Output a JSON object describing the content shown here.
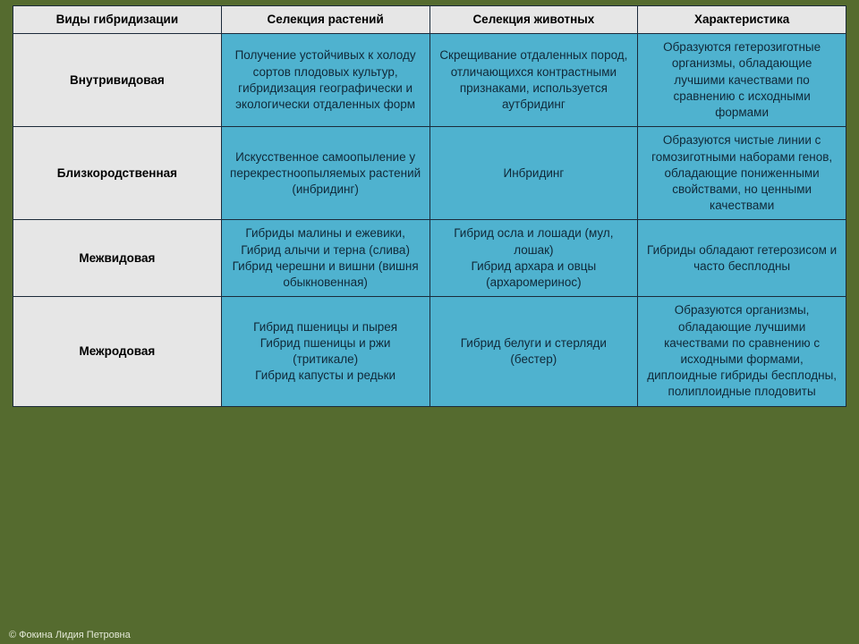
{
  "table": {
    "columns": [
      "Виды гибридизации",
      "Селекция растений",
      "Селекция животных",
      "Характеристика"
    ],
    "header_bg": [
      "#e6e6e6",
      "#e6e6e6",
      "#e6e6e6",
      "#e6e6e6"
    ],
    "header_color": "#000000",
    "rows": [
      {
        "label": "Внутривидовая",
        "cells": [
          "Получение устойчивых к холоду сортов плодовых культур, гибридизация географически и экологически отдаленных форм",
          "Скрещивание отдаленных пород, отличающихся контрастными признаками, используется аутбридинг",
          "Образуются гетерозиготные организмы, обладающие лучшими качествами по сравнению с исходными формами"
        ]
      },
      {
        "label": "Близкородственная",
        "cells": [
          "Искусственное самоопыление у перекрестноопыляемых растений (инбридинг)",
          "Инбридинг",
          "Образуются чистые линии с гомозиготными наборами генов, обладающие пониженными свойствами, но ценными качествами"
        ]
      },
      {
        "label": "Межвидовая",
        "cells": [
          "Гибриды малины и ежевики,\nГибрид алычи и терна (слива)\nГибрид черешни и вишни (вишня обыкновенная)",
          "Гибрид осла и лошади (мул, лошак)\nГибрид архара и овцы (архаромеринос)",
          "Гибриды обладают гетерозисом и часто бесплодны"
        ]
      },
      {
        "label": "Межродовая",
        "cells": [
          "Гибрид пшеницы и пырея\nГибрид пшеницы и ржи (тритикале)\nГибрид капусты и редьки",
          "Гибрид белуги и стерляди (бестер)",
          "Образуются организмы, обладающие лучшими качествами по сравнению с исходными формами, диплоидные гибриды бесплодны, полиплоидные плодовиты"
        ]
      }
    ],
    "row_label_bg": "#e6e6e6",
    "row_label_color": "#000000",
    "data_bg": "#4fb2cf",
    "data_color": "#102838",
    "border_color": "#1b2a3a",
    "font_size_pt": 10,
    "background_color": "#556b2f"
  },
  "footer": "© Фокина Лидия Петровна"
}
